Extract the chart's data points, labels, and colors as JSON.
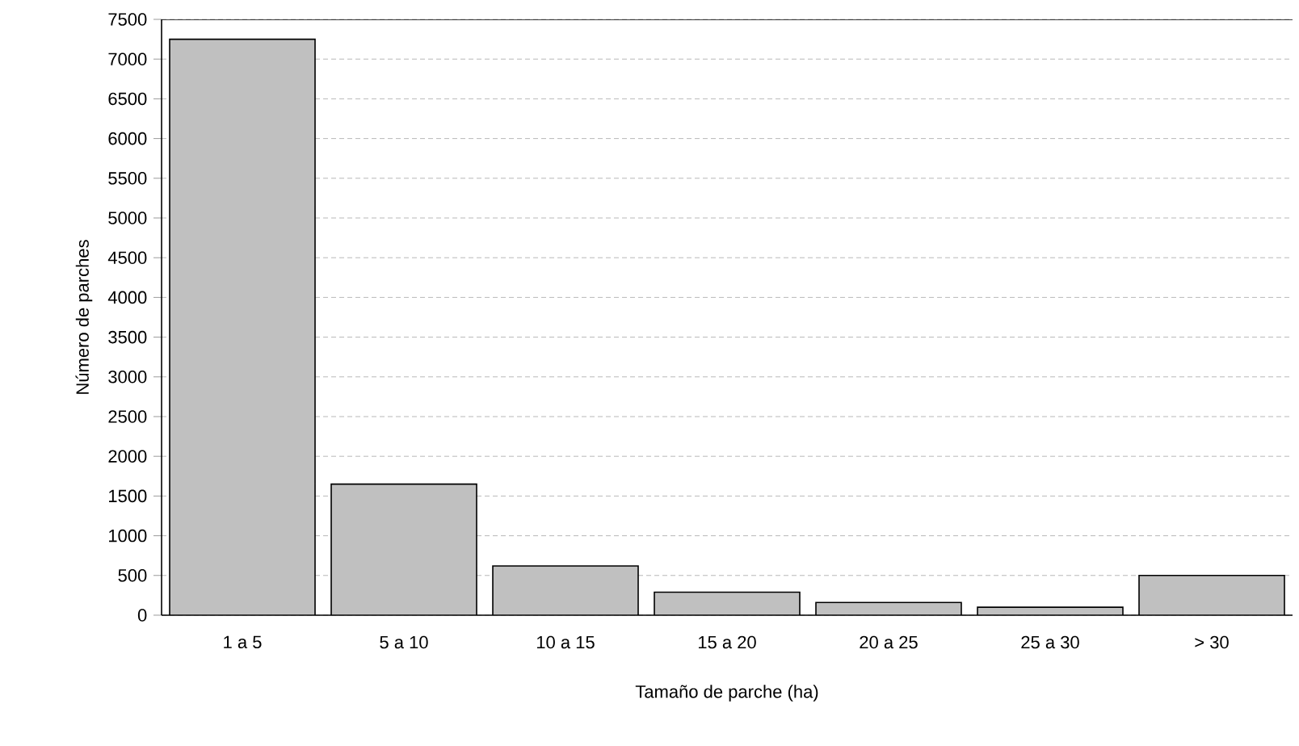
{
  "chart_data": {
    "type": "bar",
    "xlabel": "Tamaño de parche (ha)",
    "ylabel": "Número de parches",
    "categories": [
      "1 a 5",
      "5 a 10",
      "10 a 15",
      "15 a 20",
      "20 a 25",
      "25 a 30",
      "> 30"
    ],
    "values": [
      7250,
      1650,
      620,
      290,
      160,
      100,
      500
    ],
    "color": "#c0c0c0",
    "ylim": [
      0,
      7500
    ],
    "yticks": [
      0,
      500,
      1000,
      1500,
      2000,
      2500,
      3000,
      3500,
      4000,
      4500,
      5000,
      5500,
      6000,
      6500,
      7000,
      7500
    ],
    "grid": "y"
  }
}
